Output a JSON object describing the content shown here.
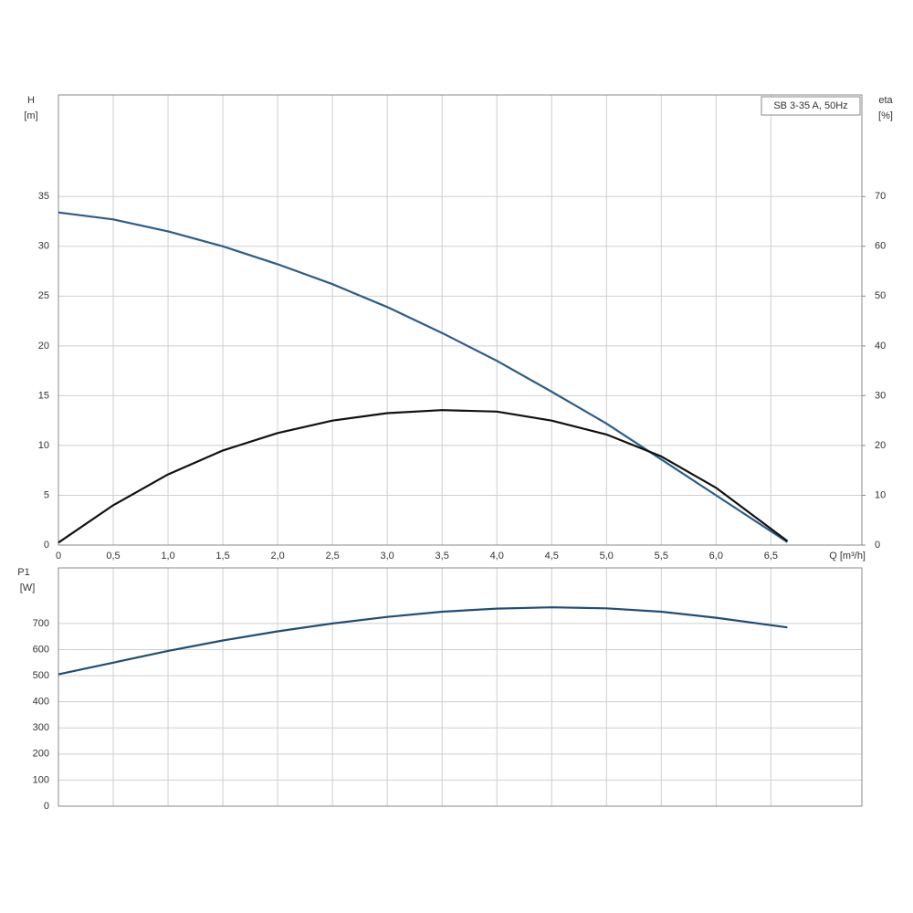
{
  "chart_data": [
    {
      "type": "line",
      "title": "SB 3-35 A, 50Hz",
      "xlabel": "Q [m³/h]",
      "ylabel": "H",
      "yunit": "[m]",
      "y2label": "eta",
      "y2unit": "[%]",
      "x": [
        0,
        0.5,
        1,
        1.5,
        2,
        2.5,
        3,
        3.5,
        4,
        4.5,
        5,
        5.5,
        6,
        6.65
      ],
      "xlim": [
        0,
        7.33
      ],
      "xticks": [
        0,
        {
          "value": 0.5,
          "label": "0,5"
        },
        {
          "value": 1,
          "label": "1,0"
        },
        {
          "value": 1.5,
          "label": "1,5"
        },
        {
          "value": 2,
          "label": "2,0"
        },
        {
          "value": 2.5,
          "label": "2,5"
        },
        {
          "value": 3,
          "label": "3,0"
        },
        {
          "value": 3.5,
          "label": "3,5"
        },
        {
          "value": 4,
          "label": "4,0"
        },
        {
          "value": 4.5,
          "label": "4,5"
        },
        {
          "value": 5,
          "label": "5,0"
        },
        {
          "value": 5.5,
          "label": "5,5"
        },
        {
          "value": 6,
          "label": "6,0"
        },
        {
          "value": 6.5,
          "label": "6,5"
        }
      ],
      "ylim": [
        0,
        45.2
      ],
      "yticks": [
        0,
        5,
        10,
        15,
        20,
        25,
        30,
        35
      ],
      "y2lim": [
        0,
        90.4
      ],
      "y2ticks": [
        0,
        10,
        20,
        30,
        40,
        50,
        60,
        70
      ],
      "grid": true,
      "series": [
        {
          "name": "H",
          "color": "#2b5d8a",
          "values": [
            33.4,
            32.7,
            31.5,
            30,
            28.2,
            26.2,
            23.9,
            21.3,
            18.5,
            15.4,
            12.2,
            8.6,
            5.0,
            0.3
          ]
        },
        {
          "name": "eta",
          "color": "#111111",
          "axis": "y2",
          "values": [
            0.5,
            8,
            14.2,
            19,
            22.5,
            25,
            26.5,
            27.1,
            26.8,
            25,
            22.2,
            17.8,
            11.5,
            0.8
          ]
        }
      ]
    },
    {
      "type": "line",
      "ylabel": "P1",
      "yunit": "[W]",
      "x": [
        0,
        0.5,
        1,
        1.5,
        2,
        2.5,
        3,
        3.5,
        4,
        4.5,
        5,
        5.5,
        6,
        6.65
      ],
      "xlim": [
        0,
        7.33
      ],
      "ylim": [
        0,
        913
      ],
      "yticks": [
        0,
        100,
        200,
        300,
        400,
        500,
        600,
        700
      ],
      "grid": true,
      "series": [
        {
          "name": "P1",
          "color": "#1f4e79",
          "values": [
            505,
            550,
            595,
            635,
            670,
            700,
            725,
            745,
            757,
            762,
            758,
            745,
            722,
            685
          ]
        }
      ]
    }
  ]
}
